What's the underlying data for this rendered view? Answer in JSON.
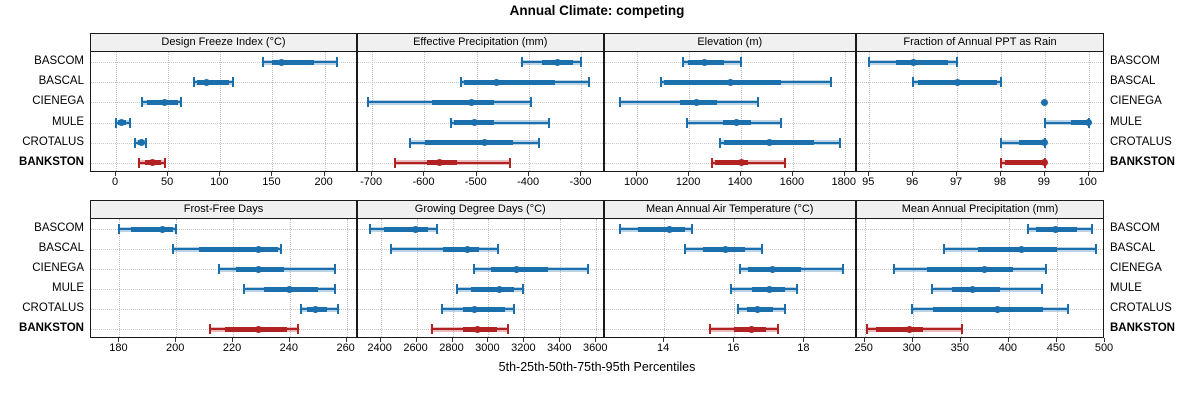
{
  "title": "Annual Climate: competing",
  "xlabel": "5th-25th-50th-75th-95th Percentiles",
  "sites": [
    "BASCOM",
    "BASCAL",
    "CIENEGA",
    "MULE",
    "CROTALUS",
    "BANKSTON"
  ],
  "highlight_site": "BANKSTON",
  "percentile_labels": [
    "5th",
    "25th",
    "50th",
    "75th",
    "95th"
  ],
  "colors": {
    "series_blue": "#1b6fad",
    "series_red": "#b22222",
    "strip_bg": "#f0f0f0",
    "panel_border": "#1a1a1a",
    "grid": "#c4c4c4"
  },
  "chart_data": {
    "type": "dot-interval",
    "note": "Each row shows 5th-25th-50th-75th-95th percentiles: thin line with end caps (5th-95th), translucent band (5th-95th), solid thick band (25th-75th), dot at median.",
    "grid": "dotted",
    "rows_order": [
      "BASCOM",
      "BASCAL",
      "CIENEGA",
      "MULE",
      "CROTALUS",
      "BANKSTON"
    ],
    "panels": [
      {
        "label": "Design Freeze Index (°C)",
        "row": 0,
        "col": 0,
        "xlim": [
          -24,
          232
        ],
        "ticks": [
          0,
          50,
          100,
          150,
          200
        ],
        "values": {
          "BASCOM": [
            141,
            150,
            159,
            190,
            212
          ],
          "BASCAL": [
            75,
            78,
            87,
            108,
            112
          ],
          "CIENEGA": [
            25,
            30,
            46,
            59,
            62
          ],
          "MULE": [
            0,
            2,
            5,
            10,
            13
          ],
          "CROTALUS": [
            18,
            21,
            24,
            27,
            29
          ],
          "BANKSTON": [
            22,
            28,
            35,
            43,
            47
          ]
        }
      },
      {
        "label": "Effective Precipitation (mm)",
        "row": 0,
        "col": 1,
        "xlim": [
          -727,
          -256
        ],
        "ticks": [
          -700,
          -600,
          -500,
          -400,
          -300
        ],
        "values": {
          "BASCOM": [
            -413,
            -375,
            -346,
            -317,
            -301
          ],
          "BASCAL": [
            -531,
            -524,
            -463,
            -350,
            -285
          ],
          "CIENEGA": [
            -708,
            -586,
            -510,
            -467,
            -397
          ],
          "MULE": [
            -550,
            -543,
            -504,
            -468,
            -362
          ],
          "CROTALUS": [
            -627,
            -599,
            -485,
            -430,
            -382
          ],
          "BANKSTON": [
            -657,
            -595,
            -571,
            -537,
            -437
          ]
        }
      },
      {
        "label": "Elevation (m)",
        "row": 0,
        "col": 2,
        "xlim": [
          874,
          1847
        ],
        "ticks": [
          1000,
          1200,
          1400,
          1600,
          1800
        ],
        "values": {
          "BASCOM": [
            1176,
            1196,
            1260,
            1335,
            1400
          ],
          "BASCAL": [
            1091,
            1105,
            1359,
            1555,
            1745
          ],
          "CIENEGA": [
            933,
            1166,
            1229,
            1309,
            1466
          ],
          "MULE": [
            1193,
            1330,
            1384,
            1439,
            1554
          ],
          "CROTALUS": [
            1319,
            1336,
            1511,
            1681,
            1781
          ],
          "BANKSTON": [
            1290,
            1300,
            1403,
            1428,
            1570
          ]
        }
      },
      {
        "label": "Fraction of Annual PPT as Rain",
        "row": 0,
        "col": 3,
        "xlim": [
          94.72,
          100.37
        ],
        "ticks": [
          95,
          96,
          97,
          98,
          99,
          100
        ],
        "values": {
          "BASCOM": [
            95,
            95.6,
            96,
            96.8,
            97
          ],
          "BASCAL": [
            96,
            96.1,
            97,
            97.9,
            98
          ],
          "CIENEGA": [
            99,
            99,
            99,
            99,
            99
          ],
          "MULE": [
            99,
            99.6,
            100,
            100,
            100
          ],
          "CROTALUS": [
            98,
            98.4,
            99,
            99,
            99
          ],
          "BANKSTON": [
            98,
            98.1,
            99,
            99,
            99
          ]
        }
      },
      {
        "label": "Frost-Free Days",
        "row": 1,
        "col": 0,
        "xlim": [
          170,
          264
        ],
        "ticks": [
          180,
          200,
          220,
          240,
          260
        ],
        "values": {
          "BASCOM": [
            180,
            184,
            195,
            199,
            200
          ],
          "BASCAL": [
            199,
            208,
            229,
            236,
            237
          ],
          "CIENEGA": [
            215,
            221,
            229,
            238,
            256
          ],
          "MULE": [
            224,
            231,
            240,
            250,
            256
          ],
          "CROTALUS": [
            244,
            246,
            249,
            253,
            257
          ],
          "BANKSTON": [
            212,
            217,
            229,
            239,
            243
          ]
        }
      },
      {
        "label": "Growing Degree Days (°C)",
        "row": 1,
        "col": 1,
        "xlim": [
          2274,
          3646
        ],
        "ticks": [
          2400,
          2600,
          2800,
          3000,
          3200,
          3400,
          3600
        ],
        "values": {
          "BASCOM": [
            2340,
            2420,
            2595,
            2665,
            2715
          ],
          "BASCAL": [
            2456,
            2746,
            2881,
            2950,
            3052
          ],
          "CIENEGA": [
            2917,
            3014,
            3157,
            3329,
            3556
          ],
          "MULE": [
            2826,
            2903,
            3064,
            3142,
            3194
          ],
          "CROTALUS": [
            2742,
            2857,
            2922,
            3092,
            3141
          ],
          "BANKSTON": [
            2685,
            2860,
            2941,
            3050,
            3110
          ]
        }
      },
      {
        "label": "Mean Annual Air Temperature (°C)",
        "row": 1,
        "col": 2,
        "xlim": [
          12.3,
          19.5
        ],
        "ticks": [
          14,
          16,
          18
        ],
        "values": {
          "BASCOM": [
            12.75,
            13.25,
            14.15,
            14.6,
            14.8
          ],
          "BASCAL": [
            14.6,
            15.1,
            15.75,
            16.3,
            16.8
          ],
          "CIENEGA": [
            16.15,
            16.4,
            17.1,
            17.9,
            19.1
          ],
          "MULE": [
            15.9,
            16.5,
            17.0,
            17.45,
            17.8
          ],
          "CROTALUS": [
            16.1,
            16.35,
            16.65,
            17.1,
            17.45
          ],
          "BANKSTON": [
            15.3,
            16.0,
            16.5,
            16.9,
            17.25
          ]
        }
      },
      {
        "label": "Mean Annual Precipitation (mm)",
        "row": 1,
        "col": 3,
        "xlim": [
          242,
          500
        ],
        "ticks": [
          250,
          300,
          350,
          400,
          450,
          500
        ],
        "values": {
          "BASCOM": [
            420,
            428,
            448,
            471,
            486
          ],
          "BASCAL": [
            333,
            368,
            413,
            450,
            491
          ],
          "CIENEGA": [
            281,
            315,
            375,
            404,
            439
          ],
          "MULE": [
            320,
            341,
            362,
            391,
            434
          ],
          "CROTALUS": [
            299,
            321,
            388,
            436,
            462
          ],
          "BANKSTON": [
            252,
            262,
            297,
            311,
            351
          ]
        }
      }
    ]
  }
}
